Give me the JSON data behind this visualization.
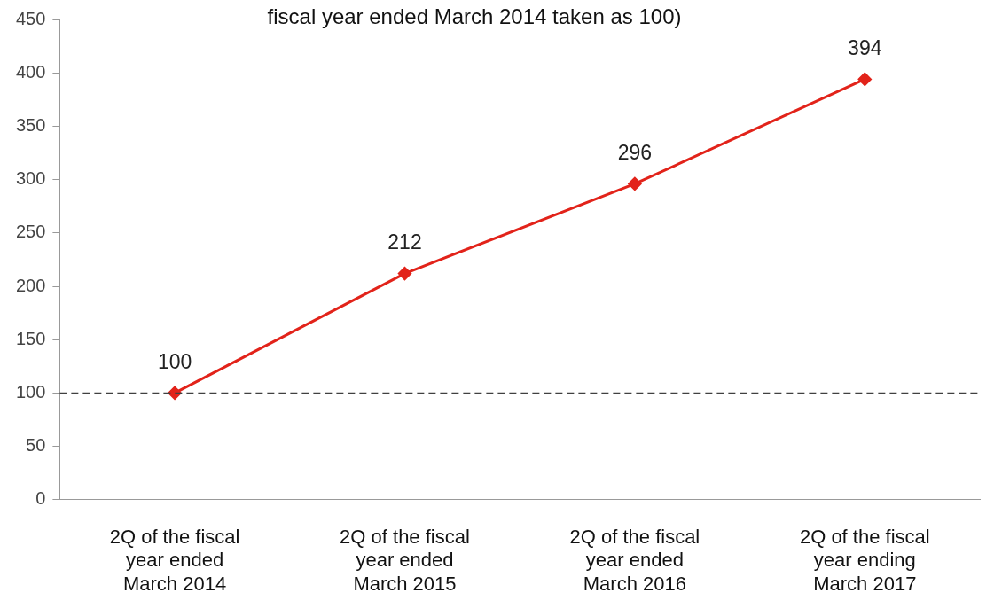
{
  "chart_data": {
    "type": "line",
    "title": "fiscal year ended March 2014 taken as 100)",
    "categories": [
      "2Q of the fiscal\nyear ended\nMarch 2014",
      "2Q of the fiscal\nyear ended\nMarch 2015",
      "2Q of the fiscal\nyear ended\nMarch 2016",
      "2Q of the fiscal\nyear ending\nMarch 2017"
    ],
    "series": [
      {
        "color": "#e2231a",
        "values": [
          100,
          212,
          296,
          394
        ]
      }
    ],
    "ylim": [
      0,
      450
    ],
    "yticks": [
      0,
      50,
      100,
      150,
      200,
      250,
      300,
      350,
      400,
      450
    ],
    "ref_lines": [
      {
        "axis": "y",
        "value": 100,
        "color": "#404040",
        "line_style": "dashed"
      }
    ],
    "data_labels": true,
    "marker": "diamond",
    "line_style": "solid",
    "grid": false,
    "legend": false
  }
}
